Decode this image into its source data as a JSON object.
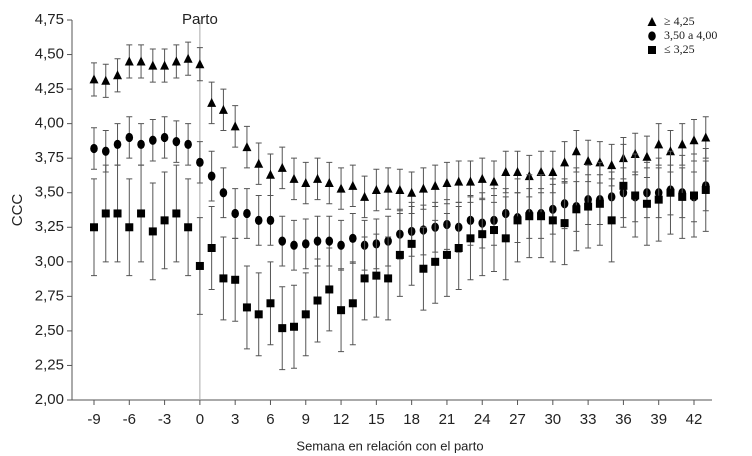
{
  "chart_data": {
    "type": "scatter",
    "annotation": "Parto",
    "xlabel": "Semana en relación con el parto",
    "ylabel": "CCC",
    "x": [
      -9,
      -8,
      -7,
      -6,
      -5,
      -4,
      -3,
      -2,
      -1,
      0,
      1,
      2,
      3,
      4,
      5,
      6,
      7,
      8,
      9,
      10,
      11,
      12,
      13,
      14,
      15,
      16,
      17,
      18,
      19,
      20,
      21,
      22,
      23,
      24,
      25,
      26,
      27,
      28,
      29,
      30,
      31,
      32,
      33,
      34,
      35,
      36,
      37,
      38,
      39,
      40,
      41,
      42,
      43
    ],
    "series": [
      {
        "name": "≥ 4,25",
        "marker": "triangle",
        "color": "#000000",
        "values": [
          4.32,
          4.31,
          4.35,
          4.45,
          4.45,
          4.42,
          4.42,
          4.45,
          4.47,
          4.43,
          4.15,
          4.1,
          3.98,
          3.83,
          3.71,
          3.63,
          3.68,
          3.6,
          3.57,
          3.6,
          3.57,
          3.53,
          3.55,
          3.47,
          3.52,
          3.53,
          3.52,
          3.5,
          3.53,
          3.55,
          3.57,
          3.58,
          3.58,
          3.6,
          3.58,
          3.65,
          3.65,
          3.62,
          3.65,
          3.65,
          3.72,
          3.8,
          3.73,
          3.72,
          3.7,
          3.75,
          3.78,
          3.76,
          3.85,
          3.8,
          3.85,
          3.88,
          3.9
        ],
        "errors": [
          0.12,
          0.12,
          0.12,
          0.12,
          0.12,
          0.12,
          0.12,
          0.12,
          0.12,
          0.12,
          0.15,
          0.15,
          0.15,
          0.15,
          0.15,
          0.15,
          0.15,
          0.15,
          0.15,
          0.15,
          0.15,
          0.15,
          0.15,
          0.15,
          0.15,
          0.15,
          0.15,
          0.15,
          0.15,
          0.15,
          0.15,
          0.15,
          0.15,
          0.15,
          0.15,
          0.15,
          0.15,
          0.15,
          0.15,
          0.15,
          0.15,
          0.15,
          0.15,
          0.15,
          0.15,
          0.15,
          0.15,
          0.15,
          0.15,
          0.15,
          0.15,
          0.15,
          0.15
        ]
      },
      {
        "name": "3,50 a 4,00",
        "marker": "circle",
        "color": "#000000",
        "values": [
          3.82,
          3.8,
          3.85,
          3.9,
          3.85,
          3.88,
          3.9,
          3.87,
          3.85,
          3.72,
          3.62,
          3.5,
          3.35,
          3.35,
          3.3,
          3.3,
          3.15,
          3.12,
          3.13,
          3.15,
          3.15,
          3.12,
          3.17,
          3.12,
          3.13,
          3.15,
          3.2,
          3.22,
          3.23,
          3.25,
          3.27,
          3.25,
          3.3,
          3.28,
          3.3,
          3.35,
          3.32,
          3.35,
          3.35,
          3.38,
          3.42,
          3.4,
          3.45,
          3.45,
          3.47,
          3.5,
          3.47,
          3.5,
          3.5,
          3.52,
          3.5,
          3.47,
          3.55
        ],
        "errors": [
          0.15,
          0.15,
          0.15,
          0.15,
          0.15,
          0.15,
          0.15,
          0.15,
          0.15,
          0.15,
          0.18,
          0.18,
          0.18,
          0.18,
          0.18,
          0.18,
          0.18,
          0.18,
          0.18,
          0.18,
          0.18,
          0.18,
          0.18,
          0.18,
          0.18,
          0.18,
          0.18,
          0.18,
          0.18,
          0.18,
          0.18,
          0.18,
          0.18,
          0.18,
          0.18,
          0.18,
          0.18,
          0.18,
          0.18,
          0.18,
          0.18,
          0.18,
          0.18,
          0.18,
          0.18,
          0.18,
          0.18,
          0.18,
          0.18,
          0.18,
          0.18,
          0.18,
          0.18
        ]
      },
      {
        "name": "≤ 3,25",
        "marker": "square",
        "color": "#000000",
        "values": [
          3.25,
          3.35,
          3.35,
          3.25,
          3.35,
          3.22,
          3.3,
          3.35,
          3.25,
          2.97,
          3.1,
          2.88,
          2.87,
          2.67,
          2.62,
          2.7,
          2.52,
          2.53,
          2.62,
          2.72,
          2.8,
          2.65,
          2.7,
          2.88,
          2.9,
          2.88,
          3.05,
          3.13,
          2.95,
          3.0,
          3.05,
          3.1,
          3.17,
          3.2,
          3.23,
          3.17,
          3.3,
          3.33,
          3.33,
          3.3,
          3.28,
          3.38,
          3.4,
          3.42,
          3.3,
          3.55,
          3.48,
          3.42,
          3.45,
          3.5,
          3.47,
          3.48,
          3.52
        ],
        "errors": [
          0.35,
          0.35,
          0.35,
          0.35,
          0.35,
          0.35,
          0.35,
          0.35,
          0.35,
          0.35,
          0.3,
          0.3,
          0.3,
          0.3,
          0.3,
          0.3,
          0.3,
          0.3,
          0.3,
          0.3,
          0.3,
          0.3,
          0.3,
          0.3,
          0.3,
          0.3,
          0.3,
          0.3,
          0.3,
          0.3,
          0.3,
          0.3,
          0.3,
          0.3,
          0.3,
          0.3,
          0.3,
          0.3,
          0.3,
          0.3,
          0.3,
          0.3,
          0.3,
          0.3,
          0.3,
          0.3,
          0.3,
          0.3,
          0.3,
          0.3,
          0.3,
          0.3,
          0.3
        ]
      }
    ],
    "xlim": [
      -10.87,
      43.53
    ],
    "ylim": [
      2.0,
      4.75
    ],
    "xticks": [
      -9,
      -6,
      -3,
      0,
      3,
      6,
      9,
      12,
      15,
      18,
      21,
      24,
      27,
      30,
      33,
      36,
      39,
      42
    ],
    "yticks": [
      {
        "value": 2.0,
        "label": "2,00"
      },
      {
        "value": 2.25,
        "label": "2,25"
      },
      {
        "value": 2.5,
        "label": "2,50"
      },
      {
        "value": 2.75,
        "label": "2,75"
      },
      {
        "value": 3.0,
        "label": "3,00"
      },
      {
        "value": 3.25,
        "label": "3,25"
      },
      {
        "value": 3.5,
        "label": "3,50"
      },
      {
        "value": 3.75,
        "label": "3,75"
      },
      {
        "value": 4.0,
        "label": "4,00"
      },
      {
        "value": 4.25,
        "label": "4,25"
      },
      {
        "value": 4.5,
        "label": "4,50"
      },
      {
        "value": 4.75,
        "label": "4,75"
      }
    ],
    "annotation_x": 0,
    "legend": "top-right",
    "grid": false
  }
}
